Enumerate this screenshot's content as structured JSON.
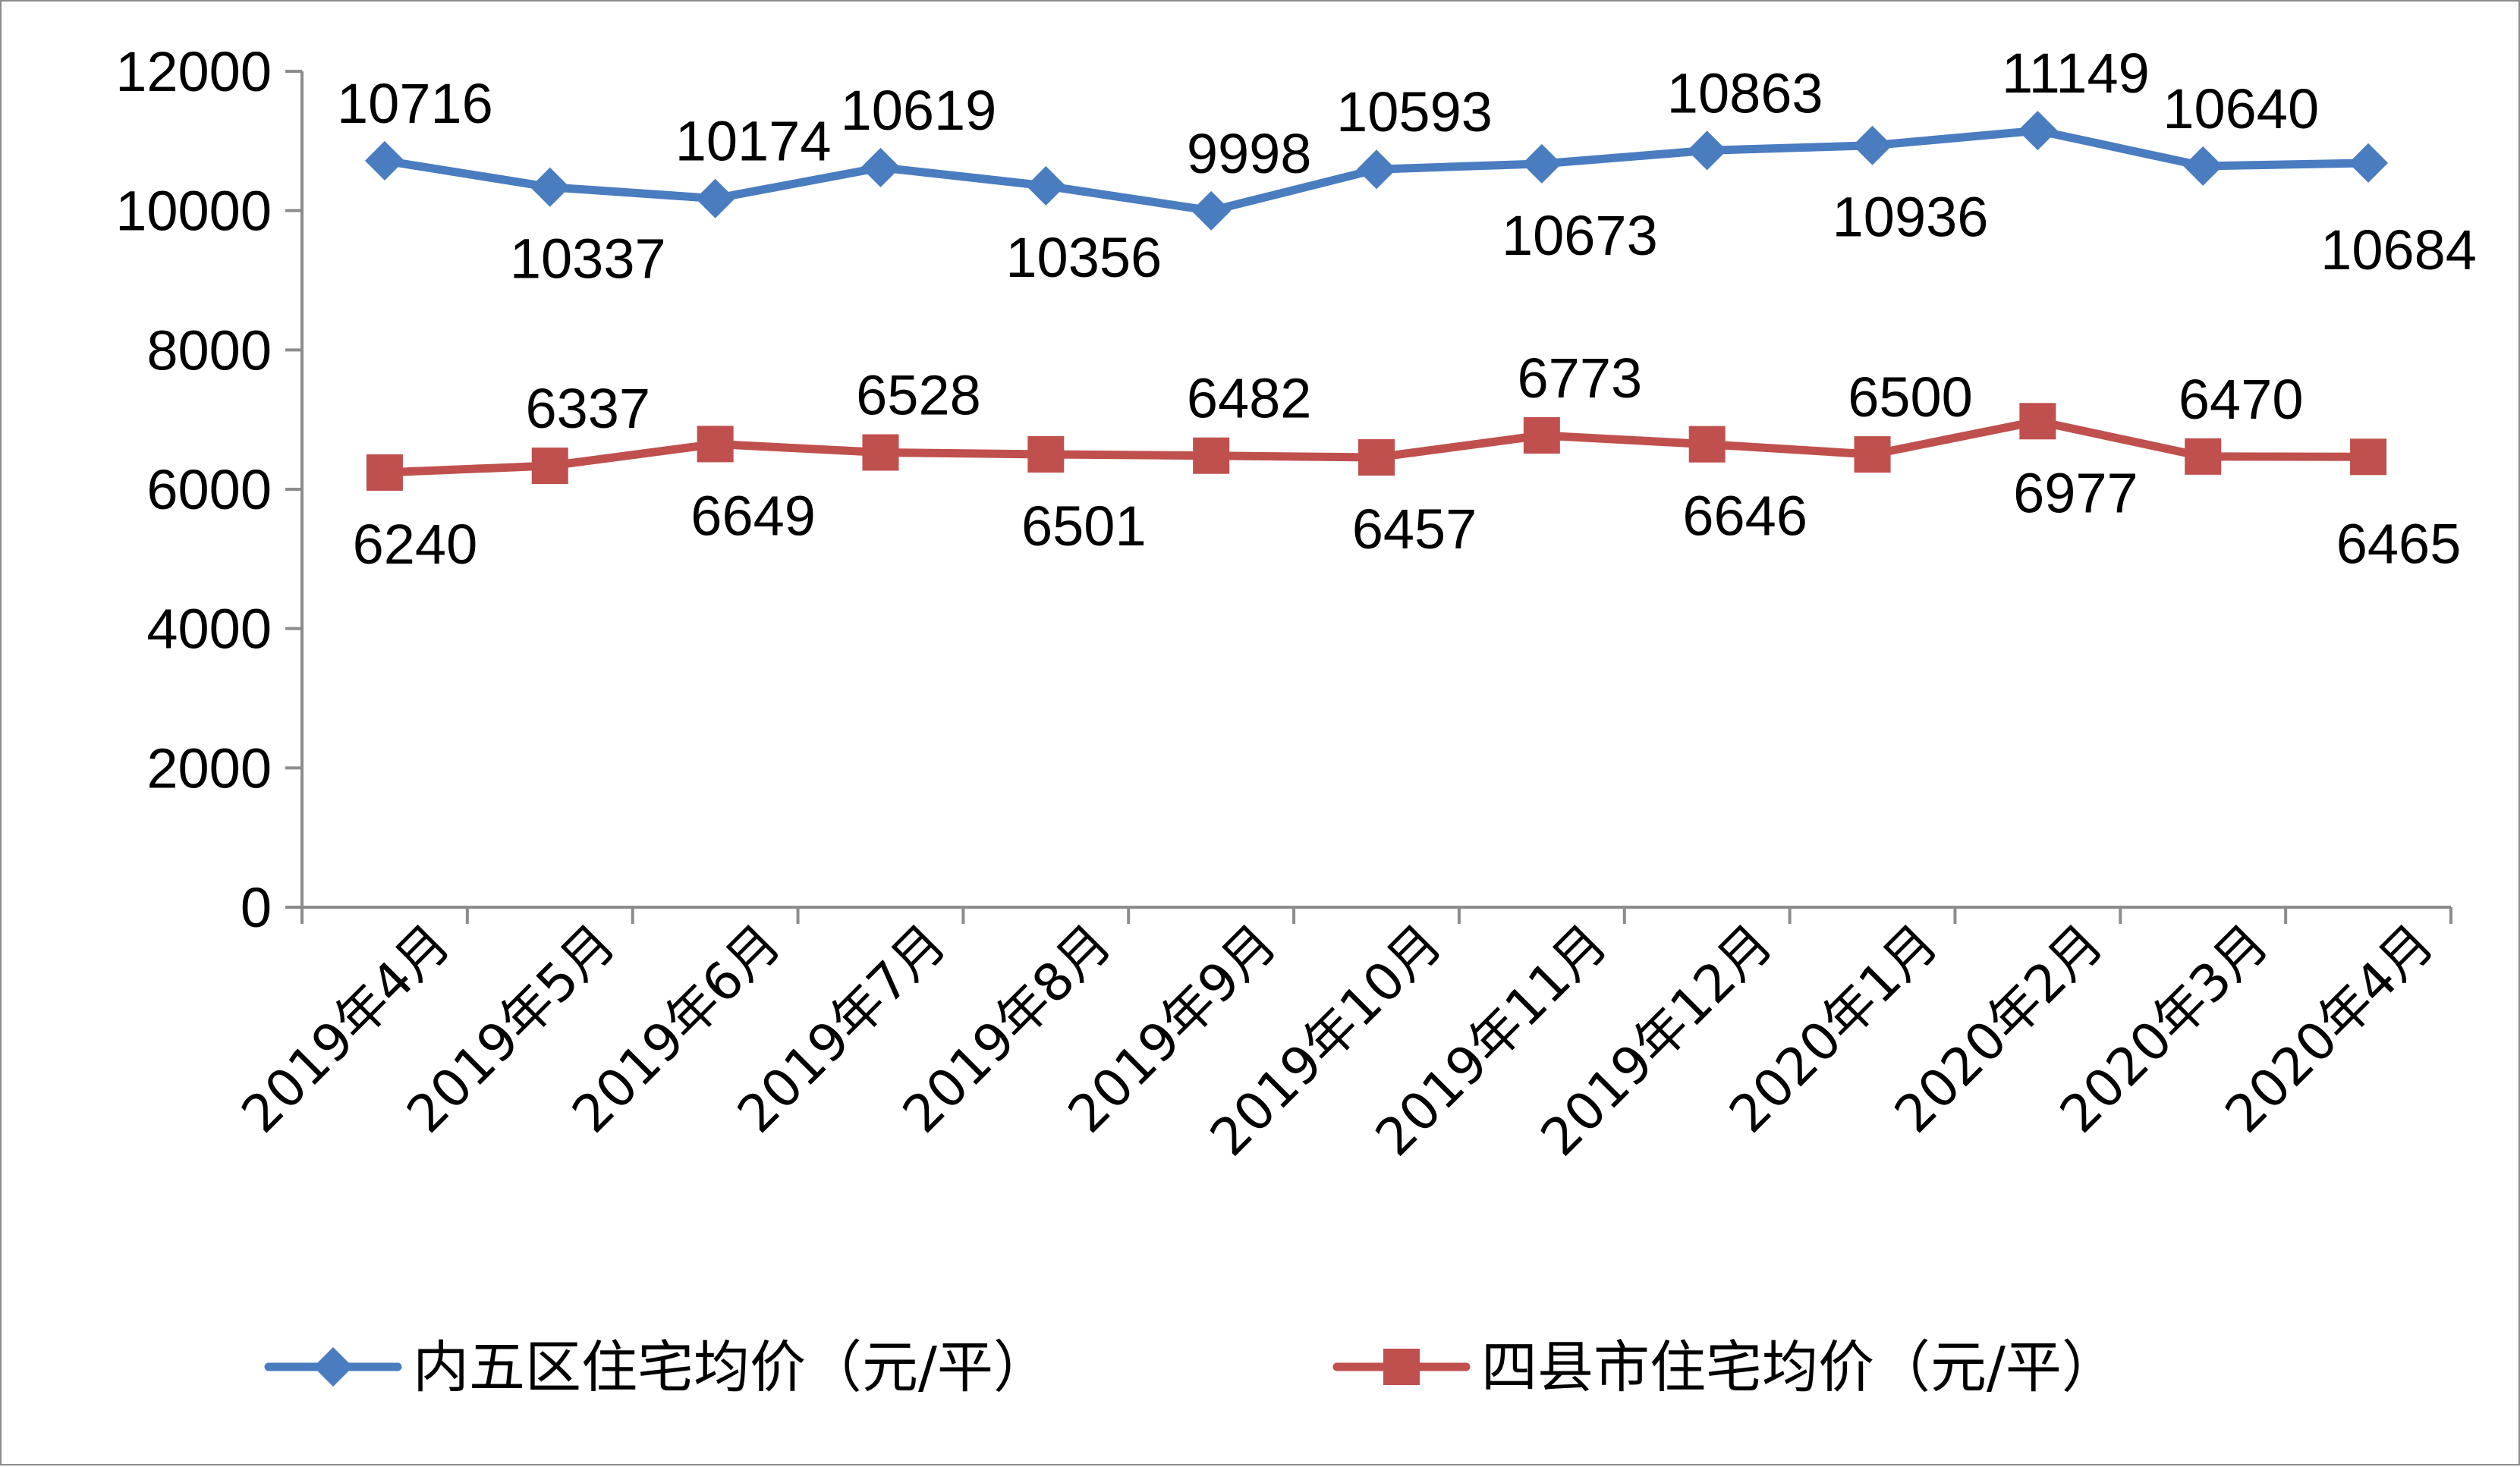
{
  "chart_data": {
    "type": "line",
    "title": "",
    "xlabel": "",
    "ylabel": "",
    "categories": [
      "2019年4月",
      "2019年5月",
      "2019年6月",
      "2019年7月",
      "2019年8月",
      "2019年9月",
      "2019年10月",
      "2019年11月",
      "2019年12月",
      "2020年1月",
      "2020年2月",
      "2020年3月",
      "2020年4月"
    ],
    "ylim": [
      0,
      12000
    ],
    "yticks": [
      "0",
      "2000",
      "4000",
      "6000",
      "8000",
      "10000",
      "12000"
    ],
    "grid": false,
    "legend_position": "bottom",
    "series": [
      {
        "name": "内五区住宅均价（元/平）",
        "color": "#4a7cc0",
        "marker": "diamond",
        "values": [
          10716,
          10337,
          10174,
          10619,
          10356,
          9998,
          10593,
          10673,
          10863,
          10936,
          11149,
          10640,
          10684
        ],
        "labels": [
          "10716",
          "10337",
          "10174",
          "10619",
          "10356",
          "9998",
          "10593",
          "10673",
          "10863",
          "10936",
          "11149",
          "10640",
          "10684"
        ],
        "label_sides": [
          "above",
          "below",
          "above",
          "above",
          "below",
          "above",
          "above",
          "below",
          "above",
          "below",
          "above",
          "above",
          "below"
        ]
      },
      {
        "name": "四县市住宅均价（元/平）",
        "color": "#c0504d",
        "marker": "square",
        "values": [
          6240,
          6337,
          6649,
          6528,
          6501,
          6482,
          6457,
          6773,
          6646,
          6500,
          6977,
          6470,
          6465
        ],
        "labels": [
          "6240",
          "6337",
          "6649",
          "6528",
          "6501",
          "6482",
          "6457",
          "6773",
          "6646",
          "6500",
          "6977",
          "6470",
          "6465"
        ],
        "label_sides": [
          "below",
          "above",
          "below",
          "above",
          "below",
          "above",
          "below",
          "above",
          "below",
          "above",
          "below",
          "above",
          "below"
        ]
      }
    ]
  }
}
